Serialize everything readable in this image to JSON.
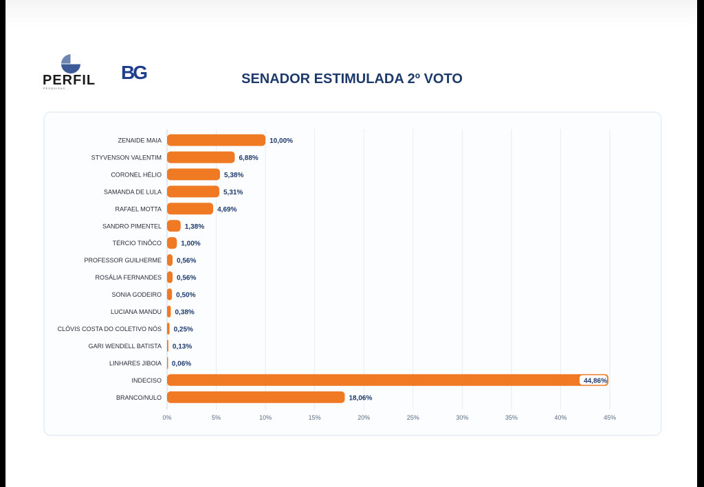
{
  "header": {
    "title": "SENADOR ESTIMULADA 2º VOTO",
    "logo_perfil": "PERFIL",
    "logo_perfil_tagline": "PESQUISAS ...",
    "logo_bg": "BG"
  },
  "colors": {
    "bar": "#f07a24",
    "title": "#1e3a6b",
    "grid": "#e6ecf3"
  },
  "chart_data": {
    "type": "bar",
    "orientation": "horizontal",
    "title": "SENADOR ESTIMULADA 2º VOTO",
    "categories": [
      "ZENAIDE MAIA",
      "STYVENSON VALENTIM",
      "CORONEL HÉLIO",
      "SAMANDA DE LULA",
      "RAFAEL MOTTA",
      "SANDRO PIMENTEL",
      "TÉRCIO TINÔCO",
      "PROFESSOR GUILHERME",
      "ROSÁLIA FERNANDES",
      "SONIA GODEIRO",
      "LUCIANA MANDU",
      "CLÓVIS COSTA DO COLETIVO NÓS",
      "GARI WENDELL BATISTA",
      "LINHARES JIBOIA",
      "INDECISO",
      "BRANCO/NULO"
    ],
    "values": [
      10.0,
      6.88,
      5.38,
      5.31,
      4.69,
      1.38,
      1.0,
      0.56,
      0.56,
      0.5,
      0.38,
      0.25,
      0.13,
      0.06,
      44.86,
      18.06
    ],
    "value_labels": [
      "10,00%",
      "6,88%",
      "5,38%",
      "5,31%",
      "4,69%",
      "1,38%",
      "1,00%",
      "0,56%",
      "0,56%",
      "0,50%",
      "0,38%",
      "0,25%",
      "0,13%",
      "0,06%",
      "44,86%",
      "18,06%"
    ],
    "xlim": [
      0,
      45
    ],
    "xticks": [
      0,
      5,
      10,
      15,
      20,
      25,
      30,
      35,
      40,
      45
    ],
    "xtick_labels": [
      "0%",
      "5%",
      "10%",
      "15%",
      "20%",
      "25%",
      "30%",
      "35%",
      "40%",
      "45%"
    ],
    "grid": true
  }
}
